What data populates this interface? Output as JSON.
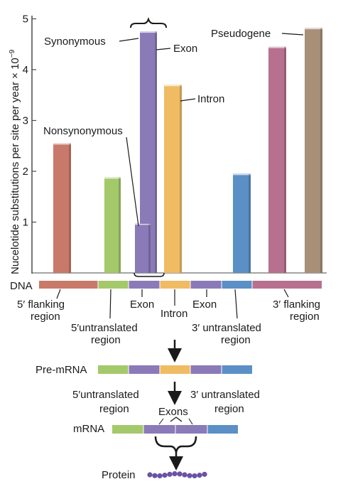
{
  "colors": {
    "flanking5": "#c8796a",
    "untranslated5": "#a4c96a",
    "exon": "#8b7ab8",
    "intron": "#efbc63",
    "untranslated3": "#5b8fc6",
    "flanking3": "#b8708f",
    "pseudogene": "#a89078",
    "axis": "#4a4a4a",
    "protein": "#6a52a6"
  },
  "chart_data": {
    "type": "bar",
    "ylabel": "Nucelotide substitutions per site per year × 10",
    "ylabel_exp": "−9",
    "ylim": [
      0,
      5
    ],
    "yticks": [
      "1",
      "2",
      "3",
      "4",
      "5"
    ],
    "bars": [
      {
        "label": "5′ flanking region",
        "value": 2.55
      },
      {
        "label": "5′ untranslated region",
        "value": 1.88
      },
      {
        "label": "Nonsynonymous",
        "value": 0.97
      },
      {
        "label": "Synonymous",
        "value": 4.75
      },
      {
        "label": "Intron",
        "value": 3.7
      },
      {
        "label": "3′ untranslated region",
        "value": 1.95
      },
      {
        "label": "3′ flanking region",
        "value": 4.45
      },
      {
        "label": "Pseudogene",
        "value": 4.82
      }
    ]
  },
  "annotations": {
    "synonymous": "Synonymous",
    "exon": "Exon",
    "pseudogene": "Pseudogene",
    "intron": "Intron",
    "nonsynonymous": "Nonsynonymous"
  },
  "dna": {
    "label": "DNA",
    "flank5_l1": "5′ flanking",
    "flank5_l2": "region",
    "utr5_l1": "5′untranslated",
    "utr5_l2": "region",
    "exon_a": "Exon",
    "intron": "Intron",
    "exon_b": "Exon",
    "utr3_l1": "3′ untranslated",
    "utr3_l2": "region",
    "flank3_l1": "3′ flanking",
    "flank3_l2": "region"
  },
  "pre_mrna": {
    "label": "Pre-mRNA"
  },
  "mrna": {
    "label": "mRNA",
    "utr5_l1": "5′untranslated",
    "utr5_l2": "region",
    "exons": "Exons",
    "utr3_l1": "3′ untranslated",
    "utr3_l2": "region"
  },
  "protein": {
    "label": "Protein"
  }
}
